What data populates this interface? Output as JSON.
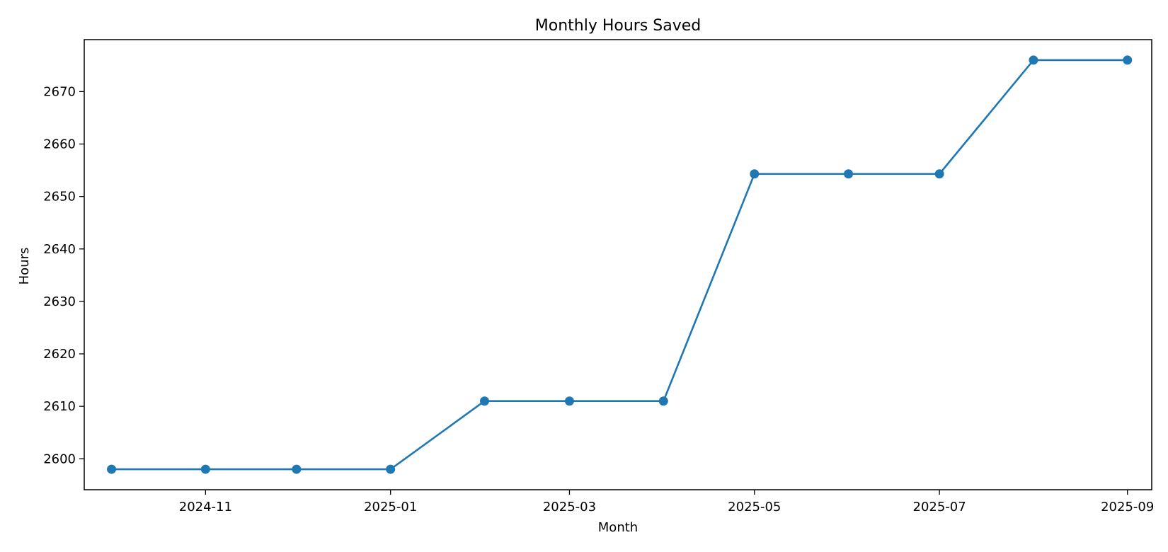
{
  "chart_data": {
    "type": "line",
    "title": "Monthly Hours Saved",
    "xlabel": "Month",
    "ylabel": "Hours",
    "x_axis_kind": "date",
    "x": [
      "2024-10-01",
      "2024-11-01",
      "2024-12-01",
      "2025-01-01",
      "2025-02-01",
      "2025-03-01",
      "2025-04-01",
      "2025-05-01",
      "2025-06-01",
      "2025-07-01",
      "2025-08-01",
      "2025-09-01"
    ],
    "series": [
      {
        "values": [
          2598,
          2598,
          2598,
          2598,
          2611,
          2611,
          2611,
          2654.3,
          2654.3,
          2654.3,
          2676,
          2676
        ],
        "color": "#1f77b4",
        "marker": "circle"
      }
    ],
    "xlim": [
      "2024-09-22",
      "2025-09-09"
    ],
    "ylim": [
      2594.1,
      2679.9
    ],
    "x_ticks": [
      "2024-11",
      "2025-01",
      "2025-03",
      "2025-05",
      "2025-07",
      "2025-09"
    ],
    "y_ticks": [
      2600,
      2610,
      2620,
      2630,
      2640,
      2650,
      2660,
      2670
    ],
    "grid": false,
    "legend": "none"
  }
}
